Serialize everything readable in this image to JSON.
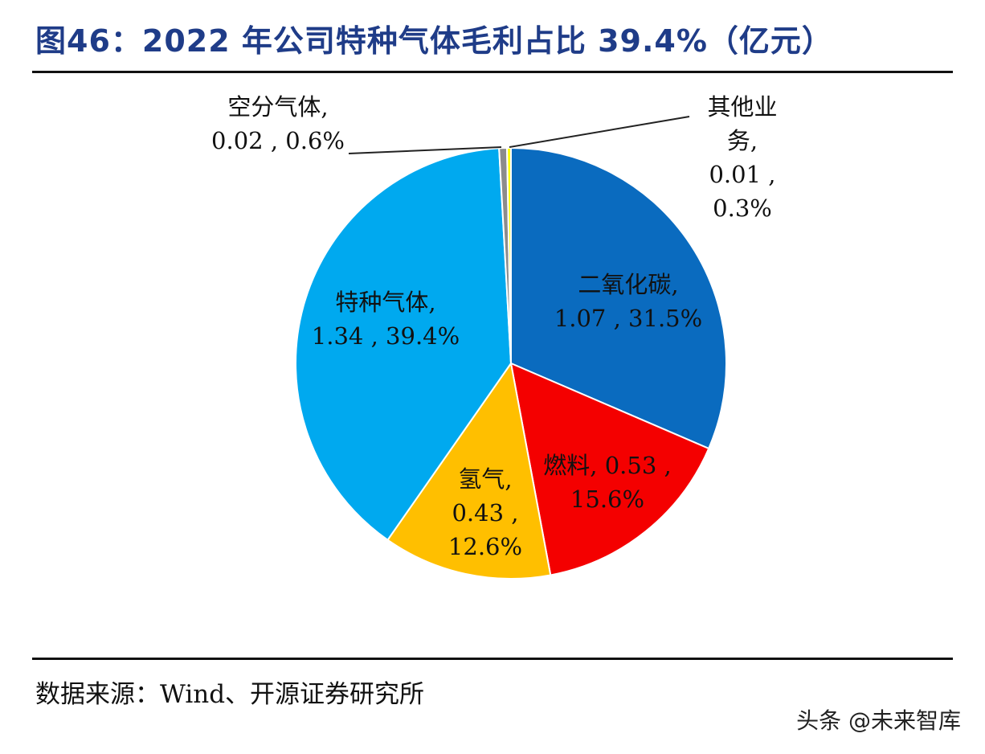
{
  "chart_data": {
    "type": "pie",
    "title": "图46：2022 年公司特种气体毛利占比 39.4%（亿元）",
    "slices": [
      {
        "name": "二氧化碳",
        "value": 1.07,
        "percent": "31.5%",
        "label_lines": [
          "二氧化碳,",
          "1.07 , 31.5%"
        ],
        "color": "#0a6bbf"
      },
      {
        "name": "燃料",
        "value": 0.53,
        "percent": "15.6%",
        "label_lines": [
          "燃料, 0.53 ,",
          "15.6%"
        ],
        "color": "#f40000"
      },
      {
        "name": "氢气",
        "value": 0.43,
        "percent": "12.6%",
        "label_lines": [
          "氢气,",
          "0.43 ,",
          "12.6%"
        ],
        "color": "#ffbf00"
      },
      {
        "name": "特种气体",
        "value": 1.34,
        "percent": "39.4%",
        "label_lines": [
          "特种气体,",
          "1.34 , 39.4%"
        ],
        "color": "#00a9ef"
      },
      {
        "name": "空分气体",
        "value": 0.02,
        "percent": "0.6%",
        "label_lines": [
          "空分气体,",
          "0.02 , 0.6%"
        ],
        "color": "#8c8c8c"
      },
      {
        "name": "其他业务",
        "value": 0.01,
        "percent": "0.3%",
        "label_lines": [
          "其他业",
          "务,",
          "0.01 ,",
          "0.3%"
        ],
        "color": "#ffff00"
      }
    ],
    "start_angle": "12 o'clock",
    "direction": "clockwise"
  },
  "source": "数据来源：Wind、开源证券研究所",
  "watermark": "头条 @未来智库"
}
